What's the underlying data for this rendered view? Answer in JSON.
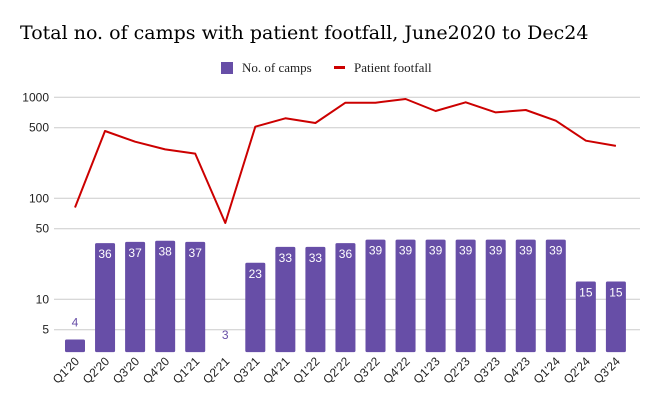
{
  "chart_data": {
    "type": "bar+line",
    "title": "Total no. of camps with patient footfall, June2020 to Dec24",
    "xlabel": "",
    "ylabel": "",
    "y_scale": "log",
    "ylim": [
      3,
      1000
    ],
    "y_ticks": [
      1000,
      500,
      100,
      50,
      10,
      5
    ],
    "grid": true,
    "legend_position": "top",
    "categories": [
      "Q1'20",
      "Q2'20",
      "Q3'20",
      "Q4'20",
      "Q1'21",
      "Q2'21",
      "Q3'21",
      "Q4'21",
      "Q1'22",
      "Q2'22",
      "Q3'22",
      "Q4'22",
      "Q1'23",
      "Q2'23",
      "Q3'23",
      "Q4'23",
      "Q1'24",
      "Q2'24",
      "Q3'24"
    ],
    "series": [
      {
        "name": "No. of camps",
        "type": "bar",
        "color": "#674ea7",
        "data_labels": true,
        "values": [
          4,
          36,
          37,
          38,
          37,
          3,
          23,
          33,
          33,
          36,
          39,
          39,
          39,
          39,
          39,
          39,
          39,
          15,
          15
        ]
      },
      {
        "name": "Patient footfall",
        "type": "line",
        "color": "#cc0000",
        "data_labels": false,
        "values": [
          81,
          464,
          363,
          305,
          277,
          57,
          512,
          620,
          556,
          885,
          885,
          962,
          731,
          892,
          708,
          748,
          586,
          372,
          330
        ]
      }
    ]
  }
}
